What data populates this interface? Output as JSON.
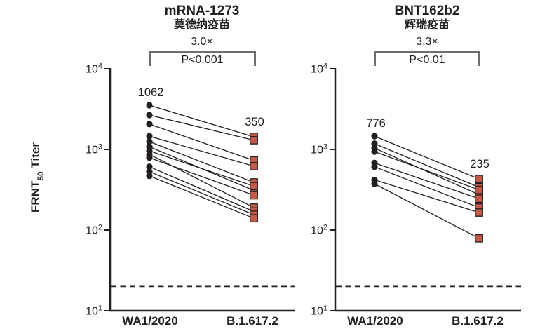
{
  "figure": {
    "background": "#ffffff",
    "ink_color": "#231f20",
    "bracket_color": "#6d6e70",
    "square_fill": "#c15c4a",
    "y_axis_title": {
      "prefix": "FRNT",
      "subscript": "50",
      "suffix": " Titer"
    },
    "y_tick_exponents": [
      4,
      3,
      2,
      1
    ],
    "detection_limit": 20
  },
  "chart_data": [
    {
      "type": "scatter",
      "variant": "paired-slopegraph",
      "title": "mRNA-1273",
      "subtitle": "莫德纳疫苗",
      "fold_change": "3.0×",
      "p_value": "P<0.001",
      "categories": [
        "WA1/2020",
        "B.1.617.2"
      ],
      "gmt_labels": {
        "wa1": "1062",
        "b16172": "350"
      },
      "yscale": "log10",
      "ylim": [
        10,
        10000
      ],
      "detection_limit": 20,
      "grid": false,
      "pairs": [
        [
          3530,
          1430
        ],
        [
          2670,
          1300
        ],
        [
          2060,
          730
        ],
        [
          1460,
          620
        ],
        [
          1250,
          390
        ],
        [
          1080,
          310
        ],
        [
          960,
          350
        ],
        [
          870,
          190
        ],
        [
          790,
          270
        ],
        [
          610,
          170
        ],
        [
          530,
          155
        ],
        [
          470,
          140
        ]
      ]
    },
    {
      "type": "scatter",
      "variant": "paired-slopegraph",
      "title": "BNT162b2",
      "subtitle": "辉瑞疫苗",
      "fold_change": "3.3×",
      "p_value": "P<0.01",
      "categories": [
        "WA1/2020",
        "B.1.617.2"
      ],
      "gmt_labels": {
        "wa1": "776",
        "b16172": "235"
      },
      "yscale": "log10",
      "ylim": [
        10,
        10000
      ],
      "detection_limit": 20,
      "grid": false,
      "pairs": [
        [
          1460,
          430
        ],
        [
          1180,
          340
        ],
        [
          1040,
          275
        ],
        [
          940,
          315
        ],
        [
          680,
          245
        ],
        [
          610,
          190
        ],
        [
          420,
          165
        ],
        [
          375,
          79
        ]
      ]
    }
  ]
}
